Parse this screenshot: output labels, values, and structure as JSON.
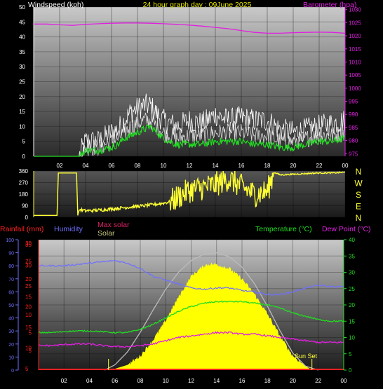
{
  "page": {
    "title": "24 hour graph day : 09June 2025",
    "background": "#000000"
  },
  "wind_panel": {
    "left_label": "Windspeed (kph)",
    "right_label": "Barometer (hpa)",
    "left_ticks": [
      "0",
      "5",
      "10",
      "15",
      "20",
      "25",
      "30",
      "35",
      "40",
      "45",
      "50"
    ],
    "right_ticks": [
      "975",
      "980",
      "985",
      "990",
      "995",
      "1000",
      "1005",
      "1010",
      "1015",
      "1020",
      "1025",
      "1030"
    ],
    "x_ticks": [
      "02",
      "04",
      "06",
      "08",
      "10",
      "12",
      "14",
      "16",
      "18",
      "20",
      "22",
      "00"
    ],
    "colors": {
      "barometer": "#e020e0",
      "gust": "#ffffff",
      "speed": "#ffffff",
      "avg": "#22dd22",
      "left_axis": "#ffffff",
      "right_axis": "#e020e0"
    }
  },
  "dir_panel": {
    "ticks": [
      "0",
      "90",
      "180",
      "270",
      "360"
    ],
    "compass": [
      "N",
      "W",
      "S",
      "E",
      "N"
    ],
    "colors": {
      "direction": "#ffff33",
      "compass": "#ffff33"
    }
  },
  "weather_panel": {
    "labels": {
      "rainfall": "Rainfall (mm)",
      "humidity": "Humidity",
      "max_solar": "Max solar",
      "solar": "Solar",
      "temperature": "Temperature (°C)",
      "dew_point": "Dew Point (°C)"
    },
    "annotation": "Sun Set",
    "humidity_ticks": [
      "0",
      "10",
      "20",
      "30",
      "40",
      "50",
      "60",
      "70",
      "80",
      "90",
      "100"
    ],
    "rain_ticks": [
      "5",
      "10",
      "15",
      "20",
      "25",
      "30",
      "35"
    ],
    "rain_ticks_inner": [
      "5",
      "5",
      "10",
      "15",
      "20",
      "25",
      "30"
    ],
    "temp_ticks": [
      "0",
      "5",
      "10",
      "15",
      "20",
      "25",
      "30",
      "35",
      "40"
    ],
    "x_ticks": [
      "02",
      "04",
      "06",
      "08",
      "10",
      "12",
      "14",
      "16",
      "18",
      "20",
      "22",
      "00"
    ],
    "colors": {
      "rainfall": "#ff2020",
      "humidity": "#7070ff",
      "max_solar": "#dd2266",
      "solar": "#c8c880",
      "temperature": "#22dd22",
      "dew_point": "#e020e0",
      "solar_fill": "#ffff00",
      "max_solar_curve": "#bbbbbb"
    }
  },
  "chart_data": [
    {
      "type": "line",
      "title": "24 hour graph day : 09June 2025",
      "ylabel": "Windspeed (kph)",
      "y2label": "Barometer (hpa)",
      "ylim": [
        0,
        50
      ],
      "y2lim": [
        974,
        1031
      ],
      "x_range": [
        0,
        24
      ],
      "grid": true,
      "series": [
        {
          "name": "Barometer (hpa)",
          "axis": "right",
          "x": [
            0,
            1,
            2,
            3,
            4,
            5,
            6,
            7,
            8,
            9,
            10,
            11,
            12,
            13,
            14,
            15,
            16,
            17,
            18,
            19,
            20,
            21,
            22,
            23,
            24
          ],
          "values": [
            1024.5,
            1024.5,
            1024.2,
            1024.0,
            1024.4,
            1024.6,
            1024.8,
            1024.9,
            1024.9,
            1024.8,
            1024.6,
            1024.4,
            1024.1,
            1023.7,
            1023.2,
            1022.7,
            1022.0,
            1021.3,
            1021.0,
            1021.0,
            1021.2,
            1021.3,
            1021.4,
            1021.3,
            1021.0
          ]
        },
        {
          "name": "Gust",
          "axis": "left",
          "x": [
            0,
            3.5,
            4,
            5,
            6,
            6.5,
            7,
            7.5,
            8,
            8.5,
            9,
            9.5,
            10,
            11,
            12,
            13,
            14,
            15,
            16,
            17,
            18,
            19,
            20,
            21,
            22,
            23,
            24
          ],
          "values": [
            0,
            0,
            5,
            5,
            8,
            9,
            12,
            15,
            16,
            17,
            17,
            14,
            12,
            10,
            12,
            11,
            14,
            12,
            13,
            12,
            12,
            9,
            8,
            9,
            10,
            11,
            12
          ]
        },
        {
          "name": "Wind speed",
          "axis": "left",
          "x": [
            0,
            3.5,
            4,
            5,
            6,
            6.5,
            7,
            7.5,
            8,
            8.5,
            9,
            9.5,
            10,
            11,
            12,
            13,
            14,
            15,
            16,
            17,
            18,
            19,
            20,
            21,
            22,
            23,
            24
          ],
          "values": [
            0,
            0,
            3,
            3,
            5,
            6,
            8,
            10,
            11,
            12,
            12,
            10,
            8,
            6,
            7,
            7,
            8,
            8,
            8,
            7,
            7,
            5,
            5,
            6,
            7,
            7,
            8
          ]
        },
        {
          "name": "Average",
          "axis": "left",
          "x": [
            0,
            3.5,
            4,
            5,
            6,
            6.5,
            7,
            7.5,
            8,
            8.5,
            9,
            9.5,
            10,
            11,
            12,
            13,
            14,
            15,
            16,
            17,
            18,
            19,
            20,
            21,
            22,
            23,
            24
          ],
          "values": [
            0,
            0,
            2,
            2,
            3,
            4,
            6,
            7,
            8,
            9,
            10,
            8,
            6,
            4,
            4,
            4,
            5,
            5,
            5,
            4,
            4,
            3,
            3,
            4,
            5,
            5,
            6
          ]
        }
      ]
    },
    {
      "type": "line",
      "ylabel": "Direction",
      "ylim": [
        0,
        360
      ],
      "x_range": [
        0,
        24
      ],
      "series": [
        {
          "name": "Wind direction",
          "x": [
            0,
            1.8,
            1.9,
            3.3,
            3.4,
            3.5,
            4,
            5,
            6,
            7,
            8,
            9,
            10,
            10.5,
            11,
            12,
            13,
            14,
            15,
            16,
            17,
            18,
            18.5,
            19,
            20,
            21,
            22,
            23,
            24
          ],
          "values": [
            15,
            15,
            345,
            345,
            15,
            60,
            50,
            55,
            65,
            75,
            85,
            95,
            110,
            120,
            150,
            210,
            230,
            255,
            300,
            240,
            180,
            200,
            350,
            330,
            335,
            340,
            345,
            345,
            350
          ]
        }
      ]
    },
    {
      "type": "line",
      "x_range": [
        0,
        24
      ],
      "series": [
        {
          "name": "Humidity",
          "axis": "humidity",
          "ylim": [
            0,
            100
          ],
          "x": [
            0,
            1,
            2,
            3,
            4,
            5,
            6,
            7,
            8,
            9,
            10,
            11,
            12,
            13,
            14,
            15,
            16,
            17,
            18,
            19,
            20,
            21,
            22,
            23,
            24
          ],
          "values": [
            80,
            80,
            80,
            81,
            82,
            83,
            84,
            82,
            78,
            72,
            69,
            66,
            63,
            62,
            63,
            63,
            61,
            60,
            58,
            58,
            60,
            63,
            65,
            64,
            64
          ]
        },
        {
          "name": "Temperature (°C)",
          "axis": "temp",
          "ylim": [
            0,
            40
          ],
          "x": [
            0,
            1,
            2,
            3,
            4,
            5,
            6,
            7,
            8,
            9,
            10,
            11,
            12,
            13,
            14,
            15,
            16,
            17,
            18,
            19,
            20,
            21,
            22,
            23,
            24
          ],
          "values": [
            11.5,
            11.5,
            11.8,
            12.0,
            12.0,
            11.8,
            11.5,
            11.5,
            12.5,
            14.0,
            16.0,
            18.0,
            19.5,
            20.5,
            21.0,
            21.0,
            21.0,
            20.5,
            20.0,
            19.0,
            17.5,
            16.5,
            15.5,
            15.0,
            15.0
          ]
        },
        {
          "name": "Dew Point (°C)",
          "axis": "temp",
          "ylim": [
            0,
            40
          ],
          "x": [
            0,
            1,
            2,
            3,
            4,
            5,
            6,
            7,
            8,
            9,
            10,
            11,
            12,
            13,
            14,
            15,
            16,
            17,
            18,
            19,
            20,
            21,
            22,
            23,
            24
          ],
          "values": [
            7.5,
            7.5,
            7.8,
            8.0,
            8.0,
            7.5,
            7.2,
            7.2,
            7.5,
            8.0,
            9.0,
            10.0,
            10.5,
            11.0,
            11.5,
            11.5,
            11.0,
            11.0,
            10.5,
            10.0,
            9.5,
            9.0,
            8.5,
            8.5,
            8.5
          ]
        },
        {
          "name": "Solar",
          "axis": "solar",
          "ylim": [
            0,
            1000
          ],
          "x": [
            5.5,
            6,
            7,
            8,
            9,
            10,
            11,
            12,
            13,
            13.5,
            14,
            15,
            16,
            17,
            18,
            19,
            20,
            21,
            21.5
          ],
          "values": [
            0,
            10,
            40,
            110,
            230,
            380,
            560,
            720,
            800,
            815,
            810,
            780,
            700,
            580,
            430,
            260,
            110,
            30,
            0
          ]
        },
        {
          "name": "Max solar",
          "axis": "solar",
          "ylim": [
            0,
            1000
          ],
          "x": [
            5.2,
            6,
            7,
            8,
            9,
            10,
            11,
            12,
            13,
            14,
            15,
            16,
            17,
            18,
            19,
            20,
            21,
            22
          ],
          "values": [
            0,
            40,
            140,
            290,
            460,
            620,
            750,
            840,
            890,
            900,
            870,
            790,
            660,
            490,
            300,
            130,
            30,
            0
          ]
        },
        {
          "name": "Rainfall (mm)",
          "axis": "rain",
          "ylim": [
            0,
            35
          ],
          "x": [
            0,
            24
          ],
          "values": [
            0,
            0
          ]
        }
      ]
    }
  ]
}
